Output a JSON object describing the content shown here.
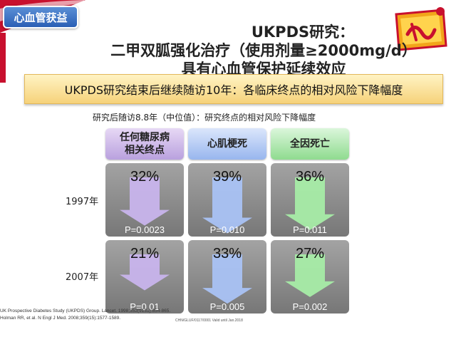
{
  "section_tag": "心血管获益",
  "title": {
    "line1": "UKPDS研究：",
    "line2": "二甲双胍强化治疗（使用剂量≥2000mg/d）",
    "line3": "具有心血管保护延续效应"
  },
  "banner": "UKPDS研究结束后继续随访10年：各临床终点的相对风险下降幅度",
  "subtitle": "研究后随访8.8年（中位值）：研究终点的相对风险下降幅度",
  "columns": [
    {
      "line1": "任何糖尿病",
      "line2": "相关终点"
    },
    {
      "line1": "心肌梗死",
      "line2": ""
    },
    {
      "line1": "全因死亡",
      "line2": ""
    }
  ],
  "rows": [
    {
      "year": "1997年",
      "cells": [
        {
          "pct": "32%",
          "reduction": 32,
          "p": "P=0.0023"
        },
        {
          "pct": "39%",
          "reduction": 39,
          "p": "P=0.010"
        },
        {
          "pct": "36%",
          "reduction": 36,
          "p": "P=0.011"
        }
      ]
    },
    {
      "year": "2007年",
      "cells": [
        {
          "pct": "21%",
          "reduction": 21,
          "p": "P=0.01"
        },
        {
          "pct": "33%",
          "reduction": 33,
          "p": "P=0.005"
        },
        {
          "pct": "27%",
          "reduction": 27,
          "p": "P=0.002"
        }
      ]
    }
  ],
  "references": [
    "UK Prospective Diabetes Study (UKPDS) Group. Lancet. 1998;352(9131):854-865.",
    "Holman RR, et al. N Engl J Med. 2008;359(15):1577-1589."
  ],
  "code": "CHN/GLUF/0117/0001 Valid until Jan.2018",
  "colors": {
    "purple": "#c8b4ec",
    "blue": "#a9c2f4",
    "green": "#a6eca6"
  }
}
